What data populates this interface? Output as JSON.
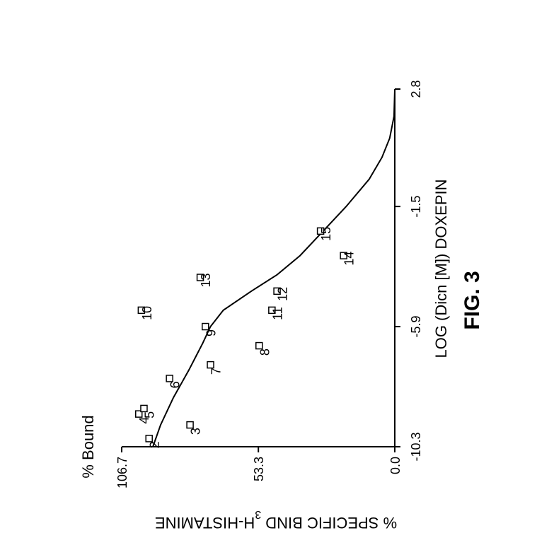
{
  "chart_data": {
    "type": "scatter",
    "orientation": "rotated-90-clockwise",
    "figure_label": "FIG. 3",
    "xlabel": "LOG (Dicn  [M]) DOXEPIN",
    "ylabel_prefix": "% SPECIFIC BIND ",
    "ylabel_superscript": "3",
    "ylabel_suffix": "H-HISTAMINE",
    "y_title": "% Bound",
    "xlim": [
      -10.3,
      2.8
    ],
    "ylim": [
      0.0,
      106.7
    ],
    "x_ticks": [
      "-10.3",
      "-5.9",
      "-1.5",
      "2.8"
    ],
    "y_ticks": [
      "0.0",
      "53.3",
      "106.7"
    ],
    "points": [
      {
        "label": "2",
        "x": -10.0,
        "y": 96.0
      },
      {
        "label": "3",
        "x": -9.5,
        "y": 80.0
      },
      {
        "label": "4",
        "x": -9.1,
        "y": 100.0
      },
      {
        "label": "5",
        "x": -8.9,
        "y": 98.0
      },
      {
        "label": "6",
        "x": -7.8,
        "y": 88.0
      },
      {
        "label": "7",
        "x": -7.3,
        "y": 72.0
      },
      {
        "label": "8",
        "x": -6.6,
        "y": 53.0
      },
      {
        "label": "9",
        "x": -5.9,
        "y": 74.0
      },
      {
        "label": "10",
        "x": -5.3,
        "y": 99.0
      },
      {
        "label": "11",
        "x": -5.3,
        "y": 48.0
      },
      {
        "label": "12",
        "x": -4.6,
        "y": 46.0
      },
      {
        "label": "13",
        "x": -4.1,
        "y": 76.0
      },
      {
        "label": "14",
        "x": -3.3,
        "y": 20.0
      },
      {
        "label": "15",
        "x": -2.4,
        "y": 29.0
      }
    ],
    "fit_curve": [
      [
        -10.3,
        94.5
      ],
      [
        -9.5,
        91.5
      ],
      [
        -8.5,
        86.5
      ],
      [
        -7.5,
        80.5
      ],
      [
        -6.5,
        75.0
      ],
      [
        -5.9,
        72.0
      ],
      [
        -5.3,
        67.0
      ],
      [
        -4.6,
        56.0
      ],
      [
        -4.0,
        46.0
      ],
      [
        -3.3,
        37.0
      ],
      [
        -2.4,
        28.0
      ],
      [
        -1.5,
        19.0
      ],
      [
        -0.5,
        10.0
      ],
      [
        0.3,
        5.0
      ],
      [
        1.0,
        2.0
      ],
      [
        1.8,
        0.3
      ],
      [
        2.8,
        0.0
      ]
    ]
  }
}
